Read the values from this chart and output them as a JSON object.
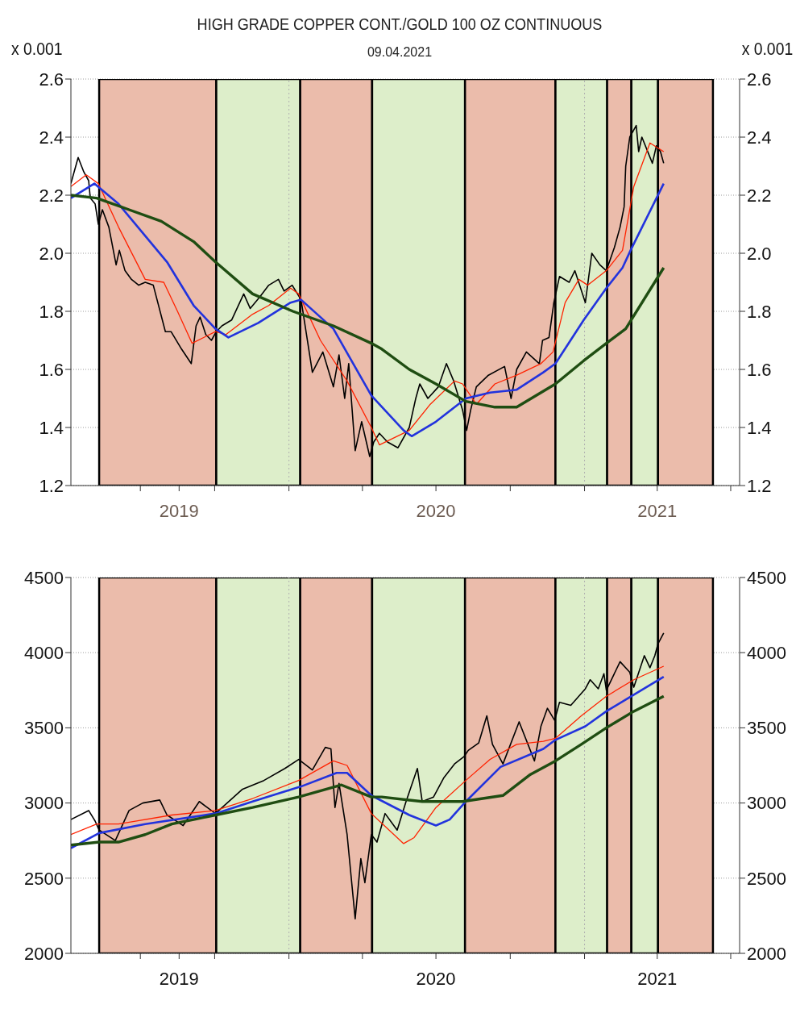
{
  "chart_data": [
    {
      "type": "line",
      "title": "HIGH GRADE COPPER CONT./GOLD 100 OZ CONTINUOUS",
      "subtitle": "09.04.2021",
      "ylabel": "x 0.001",
      "y2label": "x 0.001",
      "xlim": [
        "2019-04-06",
        "2021-07-12"
      ],
      "xticks": [
        {
          "value": "2019-07-01",
          "label": null
        },
        {
          "value": "2019-08-18",
          "label": "2019"
        },
        {
          "value": "2019-10-01",
          "label": null
        },
        {
          "value": "2020-01-01",
          "label": null
        },
        {
          "value": "2020-04-01",
          "label": null
        },
        {
          "value": "2020-07-01",
          "label": "2020"
        },
        {
          "value": "2020-10-01",
          "label": null
        },
        {
          "value": "2021-01-01",
          "label": null
        },
        {
          "value": "2021-04-01",
          "label": "2021"
        },
        {
          "value": "2021-07-01",
          "label": null
        }
      ],
      "ylim": [
        1.2,
        2.6
      ],
      "yticks": [
        1.2,
        1.4,
        1.6,
        1.8,
        {
          "value": 2,
          "label": "2.0"
        },
        2.2,
        2.4,
        2.6
      ],
      "y2lim": [
        1.2,
        2.6
      ],
      "y2ticks": [
        1.2,
        1.4,
        1.6,
        1.8,
        {
          "value": 2,
          "label": "2.0"
        },
        2.2,
        2.4,
        2.6
      ],
      "grid": "y",
      "bands": [
        {
          "axis": "x",
          "from": "2019-05-11",
          "to": "2019-10-03",
          "color": "#ebbcab"
        },
        {
          "axis": "x",
          "from": "2019-10-03",
          "to": "2020-01-15",
          "color": "#ddeeca"
        },
        {
          "axis": "x",
          "from": "2020-01-15",
          "to": "2020-04-13",
          "color": "#ebbcab"
        },
        {
          "axis": "x",
          "from": "2020-04-13",
          "to": "2020-08-06",
          "color": "#ddeeca"
        },
        {
          "axis": "x",
          "from": "2020-08-06",
          "to": "2020-11-26",
          "color": "#ebbcab"
        },
        {
          "axis": "x",
          "from": "2020-11-26",
          "to": "2021-01-29",
          "color": "#ddeeca"
        },
        {
          "axis": "x",
          "from": "2021-01-29",
          "to": "2021-02-28",
          "color": "#ebbcab"
        },
        {
          "axis": "x",
          "from": "2021-02-28",
          "to": "2021-04-02",
          "color": "#ddeeca"
        },
        {
          "axis": "x",
          "from": "2021-04-02",
          "to": "2021-06-09",
          "color": "#ebbcab"
        }
      ],
      "ref_lines": [
        {
          "axis": "x",
          "value": "2020-01-01",
          "color": "#b0b0b0",
          "line_style": "dotted"
        },
        {
          "axis": "x",
          "value": "2021-01-01",
          "color": "#b0b0b0",
          "line_style": "dotted"
        }
      ],
      "series": [
        {
          "color": "#000000",
          "x": [
            "2019-04-06",
            "2019-04-15",
            "2019-04-22",
            "2019-04-28",
            "2019-04-30",
            "2019-05-06",
            "2019-05-10",
            "2019-05-15",
            "2019-05-23",
            "2019-06-01",
            "2019-06-05",
            "2019-06-12",
            "2019-06-20",
            "2019-06-29",
            "2019-07-07",
            "2019-07-17",
            "2019-08-01",
            "2019-08-08",
            "2019-08-21",
            "2019-09-02",
            "2019-09-08",
            "2019-09-13",
            "2019-09-20",
            "2019-09-27",
            "2019-10-03",
            "2019-10-10",
            "2019-10-22",
            "2019-11-06",
            "2019-11-14",
            "2019-11-26",
            "2019-12-07",
            "2019-12-19",
            "2019-12-26",
            "2020-01-05",
            "2020-01-16",
            "2020-01-30",
            "2020-02-12",
            "2020-02-25",
            "2020-03-03",
            "2020-03-10",
            "2020-03-15",
            "2020-03-23",
            "2020-03-31",
            "2020-04-10",
            "2020-04-15",
            "2020-04-22",
            "2020-05-02",
            "2020-05-15",
            "2020-05-29",
            "2020-06-06",
            "2020-06-11",
            "2020-06-21",
            "2020-07-04",
            "2020-07-14",
            "2020-07-23",
            "2020-08-03",
            "2020-08-08",
            "2020-08-13",
            "2020-08-20",
            "2020-09-04",
            "2020-09-24",
            "2020-10-02",
            "2020-10-09",
            "2020-10-21",
            "2020-11-06",
            "2020-11-10",
            "2020-11-18",
            "2020-11-24",
            "2020-12-01",
            "2020-12-13",
            "2020-12-20",
            "2021-01-02",
            "2021-01-10",
            "2021-01-20",
            "2021-01-28",
            "2021-02-07",
            "2021-02-14",
            "2021-02-19",
            "2021-02-21",
            "2021-02-26",
            "2021-03-06",
            "2021-03-09",
            "2021-03-13",
            "2021-03-26",
            "2021-03-31",
            "2021-04-05",
            "2021-04-09"
          ],
          "values": [
            2.24,
            2.33,
            2.28,
            2.25,
            2.19,
            2.17,
            2.1,
            2.15,
            2.09,
            1.96,
            2.01,
            1.94,
            1.91,
            1.89,
            1.9,
            1.89,
            1.73,
            1.73,
            1.67,
            1.62,
            1.75,
            1.78,
            1.72,
            1.7,
            1.73,
            1.75,
            1.77,
            1.86,
            1.81,
            1.85,
            1.89,
            1.91,
            1.87,
            1.89,
            1.84,
            1.59,
            1.66,
            1.54,
            1.65,
            1.5,
            1.62,
            1.32,
            1.42,
            1.3,
            1.35,
            1.38,
            1.35,
            1.33,
            1.4,
            1.5,
            1.55,
            1.5,
            1.54,
            1.62,
            1.56,
            1.46,
            1.39,
            1.46,
            1.54,
            1.58,
            1.61,
            1.5,
            1.6,
            1.66,
            1.62,
            1.7,
            1.71,
            1.83,
            1.92,
            1.9,
            1.94,
            1.83,
            2.0,
            1.96,
            1.94,
            2.02,
            2.09,
            2.16,
            2.3,
            2.4,
            2.44,
            2.35,
            2.4,
            2.31,
            2.37,
            2.35,
            2.31
          ]
        },
        {
          "color": "#ff2200",
          "x": [
            "2019-04-06",
            "2019-04-25",
            "2019-05-10",
            "2019-06-04",
            "2019-07-07",
            "2019-07-30",
            "2019-08-16",
            "2019-09-03",
            "2019-10-02",
            "2019-10-15",
            "2019-11-17",
            "2019-12-07",
            "2020-01-03",
            "2020-01-13",
            "2020-02-09",
            "2020-03-13",
            "2020-04-12",
            "2020-04-22",
            "2020-05-29",
            "2020-06-24",
            "2020-07-24",
            "2020-08-03",
            "2020-08-20",
            "2020-09-12",
            "2020-10-09",
            "2020-11-08",
            "2020-11-23",
            "2020-12-08",
            "2020-12-25",
            "2021-01-05",
            "2021-01-28",
            "2021-02-17",
            "2021-03-03",
            "2021-03-23",
            "2021-04-09"
          ],
          "values": [
            2.23,
            2.27,
            2.24,
            2.09,
            1.91,
            1.9,
            1.8,
            1.69,
            1.73,
            1.72,
            1.79,
            1.82,
            1.88,
            1.86,
            1.7,
            1.56,
            1.4,
            1.34,
            1.39,
            1.48,
            1.56,
            1.55,
            1.48,
            1.55,
            1.58,
            1.62,
            1.66,
            1.83,
            1.91,
            1.89,
            1.94,
            2.01,
            2.23,
            2.38,
            2.35
          ]
        },
        {
          "color": "#2233dd",
          "x": [
            "2019-04-06",
            "2019-05-05",
            "2019-06-04",
            "2019-08-03",
            "2019-09-05",
            "2019-10-02",
            "2019-10-18",
            "2019-11-24",
            "2020-01-03",
            "2020-01-16",
            "2020-02-25",
            "2020-04-12",
            "2020-05-22",
            "2020-06-01",
            "2020-07-01",
            "2020-08-07",
            "2020-09-06",
            "2020-10-09",
            "2020-11-11",
            "2020-11-26",
            "2020-12-31",
            "2021-01-28",
            "2021-02-17",
            "2021-02-27",
            "2021-04-09"
          ],
          "values": [
            2.19,
            2.24,
            2.17,
            1.97,
            1.82,
            1.74,
            1.71,
            1.76,
            1.83,
            1.84,
            1.74,
            1.51,
            1.39,
            1.37,
            1.42,
            1.5,
            1.52,
            1.53,
            1.59,
            1.62,
            1.77,
            1.88,
            1.95,
            2.01,
            2.24
          ]
        },
        {
          "color": "#1f4d12",
          "x": [
            "2019-04-06",
            "2019-05-08",
            "2019-06-17",
            "2019-07-27",
            "2019-09-05",
            "2019-10-02",
            "2019-11-17",
            "2020-01-06",
            "2020-02-25",
            "2020-04-12",
            "2020-04-25",
            "2020-05-29",
            "2020-07-01",
            "2020-08-07",
            "2020-09-12",
            "2020-10-09",
            "2020-11-26",
            "2020-12-31",
            "2021-01-28",
            "2021-02-21",
            "2021-04-09"
          ],
          "values": [
            2.2,
            2.19,
            2.15,
            2.11,
            2.04,
            1.97,
            1.86,
            1.8,
            1.75,
            1.69,
            1.67,
            1.6,
            1.55,
            1.49,
            1.47,
            1.47,
            1.55,
            1.63,
            1.69,
            1.74,
            1.95
          ]
        }
      ]
    },
    {
      "type": "line",
      "xlim": [
        "2019-04-06",
        "2021-07-12"
      ],
      "xticks": [
        {
          "value": "2019-07-01",
          "label": null
        },
        {
          "value": "2019-08-18",
          "label": "2019"
        },
        {
          "value": "2019-10-01",
          "label": null
        },
        {
          "value": "2020-01-01",
          "label": null
        },
        {
          "value": "2020-04-01",
          "label": null
        },
        {
          "value": "2020-07-01",
          "label": "2020"
        },
        {
          "value": "2020-10-01",
          "label": null
        },
        {
          "value": "2021-01-01",
          "label": null
        },
        {
          "value": "2021-04-01",
          "label": "2021"
        },
        {
          "value": "2021-07-01",
          "label": null
        }
      ],
      "ylim": [
        2000,
        4500
      ],
      "yticks": [
        2000,
        2500,
        3000,
        3500,
        4000,
        4500
      ],
      "y2lim": [
        2000,
        4500
      ],
      "y2ticks": [
        2000,
        2500,
        3000,
        3500,
        4000,
        4500
      ],
      "grid": "y",
      "bands": [
        {
          "axis": "x",
          "from": "2019-05-11",
          "to": "2019-10-03",
          "color": "#ebbcab"
        },
        {
          "axis": "x",
          "from": "2019-10-03",
          "to": "2020-01-15",
          "color": "#ddeeca"
        },
        {
          "axis": "x",
          "from": "2020-01-15",
          "to": "2020-04-13",
          "color": "#ebbcab"
        },
        {
          "axis": "x",
          "from": "2020-04-13",
          "to": "2020-08-06",
          "color": "#ddeeca"
        },
        {
          "axis": "x",
          "from": "2020-08-06",
          "to": "2020-11-26",
          "color": "#ebbcab"
        },
        {
          "axis": "x",
          "from": "2020-11-26",
          "to": "2021-01-29",
          "color": "#ddeeca"
        },
        {
          "axis": "x",
          "from": "2021-01-29",
          "to": "2021-02-28",
          "color": "#ebbcab"
        },
        {
          "axis": "x",
          "from": "2021-02-28",
          "to": "2021-04-02",
          "color": "#ddeeca"
        },
        {
          "axis": "x",
          "from": "2021-04-02",
          "to": "2021-06-09",
          "color": "#ebbcab"
        }
      ],
      "ref_lines": [
        {
          "axis": "x",
          "value": "2020-01-01",
          "color": "#b0b0b0",
          "line_style": "dotted"
        },
        {
          "axis": "x",
          "value": "2021-01-01",
          "color": "#b0b0b0",
          "line_style": "dotted"
        }
      ],
      "series": [
        {
          "color": "#000000",
          "x": [
            "2019-04-06",
            "2019-04-28",
            "2019-05-06",
            "2019-05-11",
            "2019-05-31",
            "2019-06-17",
            "2019-07-04",
            "2019-07-25",
            "2019-08-03",
            "2019-08-23",
            "2019-09-12",
            "2019-10-02",
            "2019-11-04",
            "2019-12-01",
            "2019-12-27",
            "2020-01-13",
            "2020-01-30",
            "2020-02-15",
            "2020-02-22",
            "2020-02-27",
            "2020-03-03",
            "2020-03-13",
            "2020-03-23",
            "2020-03-30",
            "2020-04-04",
            "2020-04-12",
            "2020-04-19",
            "2020-04-29",
            "2020-05-14",
            "2020-05-25",
            "2020-06-08",
            "2020-06-14",
            "2020-06-28",
            "2020-07-11",
            "2020-07-24",
            "2020-08-05",
            "2020-08-10",
            "2020-08-23",
            "2020-09-02",
            "2020-09-09",
            "2020-09-22",
            "2020-10-12",
            "2020-10-31",
            "2020-11-08",
            "2020-11-16",
            "2020-11-25",
            "2020-12-01",
            "2020-12-15",
            "2021-01-02",
            "2021-01-08",
            "2021-01-18",
            "2021-01-25",
            "2021-01-28",
            "2021-02-14",
            "2021-02-26",
            "2021-03-03",
            "2021-03-16",
            "2021-03-23",
            "2021-03-29",
            "2021-04-02",
            "2021-04-09"
          ],
          "values": [
            2890,
            2950,
            2880,
            2820,
            2750,
            2950,
            3000,
            3020,
            2920,
            2850,
            3010,
            2930,
            3090,
            3150,
            3230,
            3290,
            3220,
            3370,
            3360,
            2970,
            3130,
            2790,
            2230,
            2630,
            2470,
            2790,
            2740,
            2930,
            2820,
            3010,
            3230,
            3010,
            3040,
            3170,
            3260,
            3310,
            3350,
            3400,
            3580,
            3390,
            3260,
            3540,
            3280,
            3510,
            3630,
            3550,
            3670,
            3650,
            3760,
            3820,
            3760,
            3860,
            3750,
            3940,
            3870,
            3770,
            3980,
            3900,
            3980,
            4060,
            4130
          ]
        },
        {
          "color": "#ff2200",
          "x": [
            "2019-04-06",
            "2019-05-08",
            "2019-06-04",
            "2019-08-09",
            "2019-10-02",
            "2019-11-17",
            "2020-01-13",
            "2020-02-25",
            "2020-03-13",
            "2020-04-12",
            "2020-05-22",
            "2020-06-04",
            "2020-07-01",
            "2020-08-07",
            "2020-09-06",
            "2020-10-09",
            "2020-11-11",
            "2020-11-26",
            "2020-12-28",
            "2021-01-28",
            "2021-03-03",
            "2021-04-09"
          ],
          "values": [
            2790,
            2860,
            2860,
            2920,
            2950,
            3030,
            3150,
            3280,
            3250,
            2930,
            2730,
            2770,
            2970,
            3150,
            3290,
            3390,
            3410,
            3430,
            3580,
            3710,
            3820,
            3910
          ]
        },
        {
          "color": "#2233dd",
          "x": [
            "2019-04-06",
            "2019-05-11",
            "2019-07-07",
            "2019-10-02",
            "2019-11-17",
            "2020-01-16",
            "2020-02-29",
            "2020-03-13",
            "2020-04-12",
            "2020-05-29",
            "2020-07-01",
            "2020-07-18",
            "2020-08-07",
            "2020-09-19",
            "2020-11-11",
            "2020-11-26",
            "2021-01-02",
            "2021-01-28",
            "2021-03-03",
            "2021-04-09"
          ],
          "values": [
            2700,
            2800,
            2860,
            2930,
            3010,
            3110,
            3200,
            3200,
            3050,
            2920,
            2850,
            2890,
            3010,
            3240,
            3360,
            3420,
            3510,
            3610,
            3720,
            3840
          ]
        },
        {
          "color": "#1f4d12",
          "x": [
            "2019-04-06",
            "2019-05-11",
            "2019-06-04",
            "2019-07-07",
            "2019-08-09",
            "2019-10-02",
            "2019-11-17",
            "2020-01-13",
            "2020-03-06",
            "2020-04-12",
            "2020-04-25",
            "2020-06-14",
            "2020-08-03",
            "2020-09-22",
            "2020-10-26",
            "2020-11-26",
            "2020-12-28",
            "2021-01-28",
            "2021-03-03",
            "2021-04-09"
          ],
          "values": [
            2720,
            2740,
            2740,
            2790,
            2860,
            2920,
            2970,
            3040,
            3120,
            3040,
            3040,
            3010,
            3010,
            3050,
            3190,
            3280,
            3390,
            3500,
            3610,
            3710
          ]
        }
      ]
    }
  ]
}
